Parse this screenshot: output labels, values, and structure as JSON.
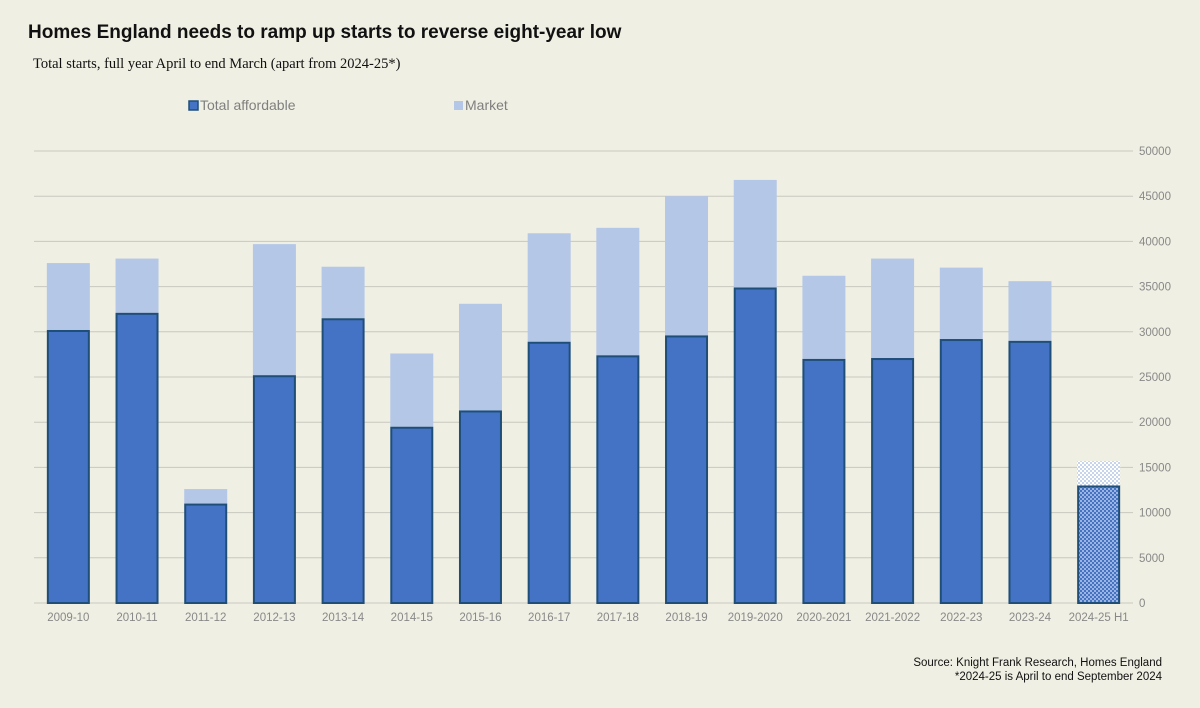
{
  "title": "Homes England needs to ramp up starts to reverse eight-year low",
  "subtitle": "Total starts, full year April to end March (apart from 2024-25*)",
  "source_line1": "Source: Knight Frank Research, Homes England",
  "source_line2": "*2024-25 is April to end September 2024",
  "colors": {
    "affordable": "#4472c4",
    "affordable_border": "#1f4e79",
    "market": "#b4c7e7",
    "grid": "#c8c8c0",
    "axis_text": "#888888",
    "legend_text": "#7f7f7f"
  },
  "chart_data": {
    "type": "bar",
    "stacked": true,
    "title": "Homes England needs to ramp up starts to reverse eight-year low",
    "xlabel": "",
    "ylabel": "",
    "ylim": [
      0,
      50000
    ],
    "yticks": [
      0,
      5000,
      10000,
      15000,
      20000,
      25000,
      30000,
      35000,
      40000,
      45000,
      50000
    ],
    "y_axis_side": "right",
    "grid": true,
    "legend_position": "top-left",
    "categories": [
      "2009-10",
      "2010-11",
      "2011-12",
      "2012-13",
      "2013-14",
      "2014-15",
      "2015-16",
      "2016-17",
      "2017-18",
      "2018-19",
      "2019-2020",
      "2020-2021",
      "2021-2022",
      "2022-23",
      "2023-24",
      "2024-25 H1"
    ],
    "series": [
      {
        "name": "Total affordable",
        "values": [
          30200,
          32100,
          11000,
          25200,
          31500,
          19500,
          21300,
          28900,
          27400,
          29600,
          34900,
          27000,
          27100,
          29200,
          29000,
          13000
        ]
      },
      {
        "name": "Market",
        "values": [
          7400,
          6000,
          1600,
          14500,
          5700,
          8100,
          11800,
          12000,
          14100,
          15400,
          11900,
          9200,
          11000,
          7900,
          6600,
          2700
        ]
      }
    ],
    "partial_period_category": "2024-25 H1"
  }
}
